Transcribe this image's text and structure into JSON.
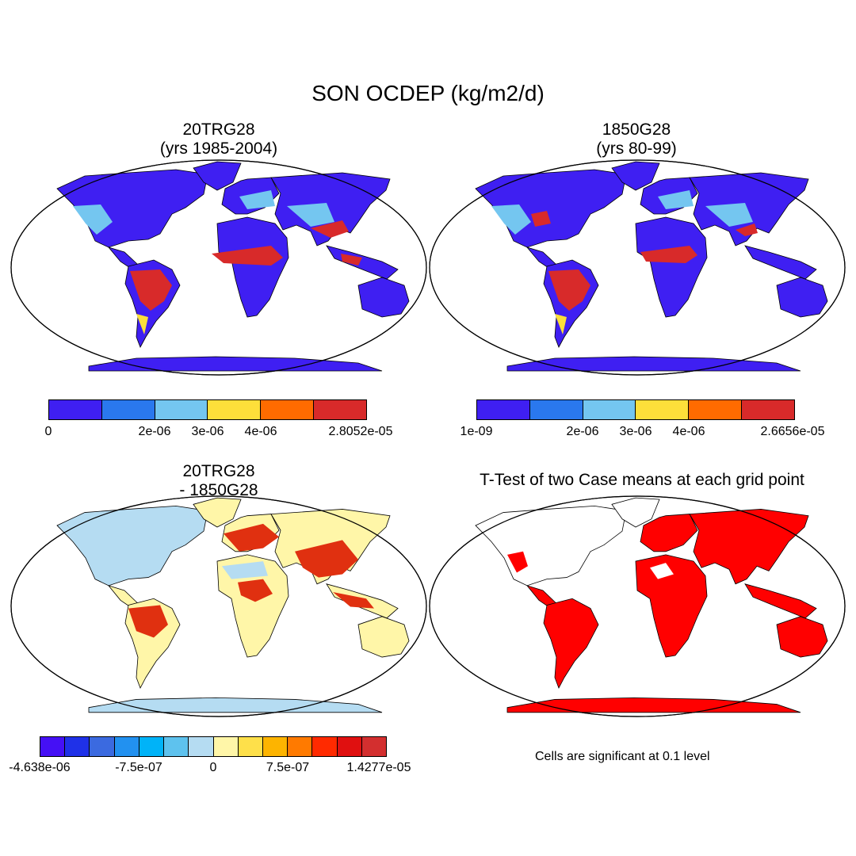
{
  "figure_title": "SON OCDEP (kg/m2/d)",
  "panels": [
    {
      "id": "tl",
      "title_line1": "20TRG28",
      "title_line2": "(yrs 1985-2004)"
    },
    {
      "id": "tr",
      "title_line1": "1850G28",
      "title_line2": "(yrs 80-99)"
    },
    {
      "id": "bl",
      "title_line1": "20TRG28",
      "title_line2": "- 1850G28"
    },
    {
      "id": "br",
      "title_line1": "T-Test of two Case means at each grid point",
      "title_line2": ""
    }
  ],
  "colorbars": {
    "tl": {
      "colors": [
        "#3f1ff2",
        "#2a78ee",
        "#74c6f0",
        "#fddf3a",
        "#ff6b00",
        "#d82a2a"
      ],
      "labels": [
        "0",
        "2e-06",
        "3e-06",
        "4e-06",
        "2.8052e-05"
      ]
    },
    "tr": {
      "colors": [
        "#3f1ff2",
        "#2a78ee",
        "#74c6f0",
        "#fddf3a",
        "#ff6b00",
        "#d82a2a"
      ],
      "labels": [
        "1e-09",
        "2e-06",
        "3e-06",
        "4e-06",
        "2.6656e-05"
      ]
    },
    "bl": {
      "colors": [
        "#4510f5",
        "#1f31e8",
        "#3b6ae0",
        "#2291f0",
        "#00b3f8",
        "#5ec2ee",
        "#b5dcf2",
        "#fff6a8",
        "#fee04a",
        "#fdb400",
        "#ff7a00",
        "#ff2a00",
        "#e01010",
        "#d32f2f"
      ],
      "labels": [
        "-4.638e-06",
        "-7.5e-07",
        "0",
        "7.5e-07",
        "1.4277e-05"
      ]
    }
  },
  "significance_note": "Cells are significant at 0.1 level",
  "map_colors": {
    "tl": {
      "base": "#3f1ff2",
      "mid": "#74c6f0",
      "hot": "#d82a2a",
      "warm": "#fddf3a"
    },
    "tr": {
      "base": "#3f1ff2",
      "mid": "#74c6f0",
      "hot": "#d82a2a",
      "warm": "#fddf3a"
    },
    "bl": {
      "base": "#fff6a8",
      "mid": "#fee04a",
      "hot": "#e03010",
      "cool": "#b5dcf2"
    },
    "br": {
      "base": "#ff0000"
    }
  }
}
